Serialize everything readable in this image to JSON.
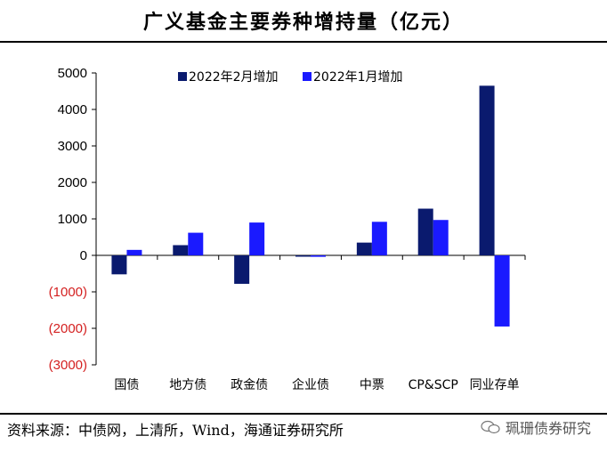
{
  "page": {
    "title": "广义基金主要券种增持量（亿元）",
    "footer": "资料来源：中债网，上清所，Wind，海通证券研究所",
    "watermark": "珮珊债券研究"
  },
  "colors": {
    "feb": "#0a1a6e",
    "jan": "#1a1aff",
    "negative_tick": "#d42020",
    "positive_tick": "#000000"
  },
  "chart_data": {
    "type": "bar",
    "title": "广义基金主要券种增持量（亿元）",
    "categories": [
      "国债",
      "地方债",
      "政金债",
      "企业债",
      "中票",
      "CP&SCP",
      "同业存单"
    ],
    "series": [
      {
        "name": "2022年2月增加",
        "values": [
          -520,
          280,
          -780,
          0,
          350,
          1280,
          4650
        ]
      },
      {
        "name": "2022年1月增加",
        "values": [
          150,
          620,
          900,
          -40,
          920,
          970,
          -1950
        ]
      }
    ],
    "yticks": [
      5000,
      4000,
      3000,
      2000,
      1000,
      0,
      -1000,
      -2000,
      -3000
    ],
    "ytick_labels": [
      "5000",
      "4000",
      "3000",
      "2000",
      "1000",
      "0",
      "(1000)",
      "(2000)",
      "(3000)"
    ],
    "ylim": [
      -3000,
      5000
    ],
    "xlabel": "",
    "ylabel": "",
    "legend_position": "top"
  }
}
